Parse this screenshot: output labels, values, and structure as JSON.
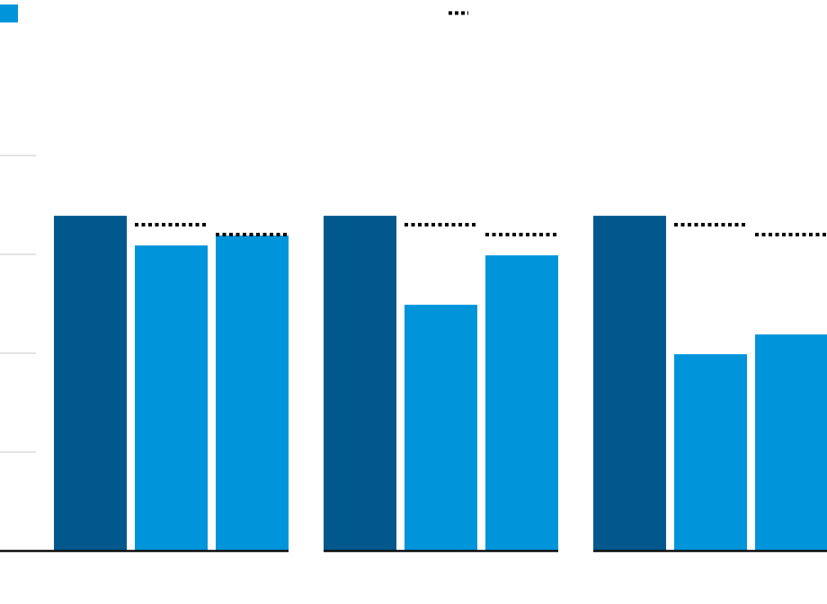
{
  "chart_data": {
    "type": "bar",
    "title": "",
    "xlabel": "",
    "ylabel": "",
    "categories": [
      "",
      "",
      ""
    ],
    "ylim": [
      0,
      4
    ],
    "yticks": [
      1,
      2,
      3,
      4
    ],
    "grid": true,
    "legend": {
      "placement": "top",
      "entries": [
        {
          "marker": "square",
          "color": "#0095db"
        },
        {
          "marker": "dotted-line",
          "color": "#000000"
        }
      ]
    },
    "series": [
      {
        "color": "#00588c",
        "values": [
          3.39,
          3.39,
          3.39
        ]
      },
      {
        "color": "#0095db",
        "values": [
          3.09,
          2.49,
          1.99
        ],
        "reference": [
          3.3,
          3.3,
          3.3
        ]
      },
      {
        "color": "#0095db",
        "values": [
          3.19,
          2.99,
          2.19
        ],
        "reference": [
          3.2,
          3.2,
          3.2
        ]
      }
    ]
  }
}
